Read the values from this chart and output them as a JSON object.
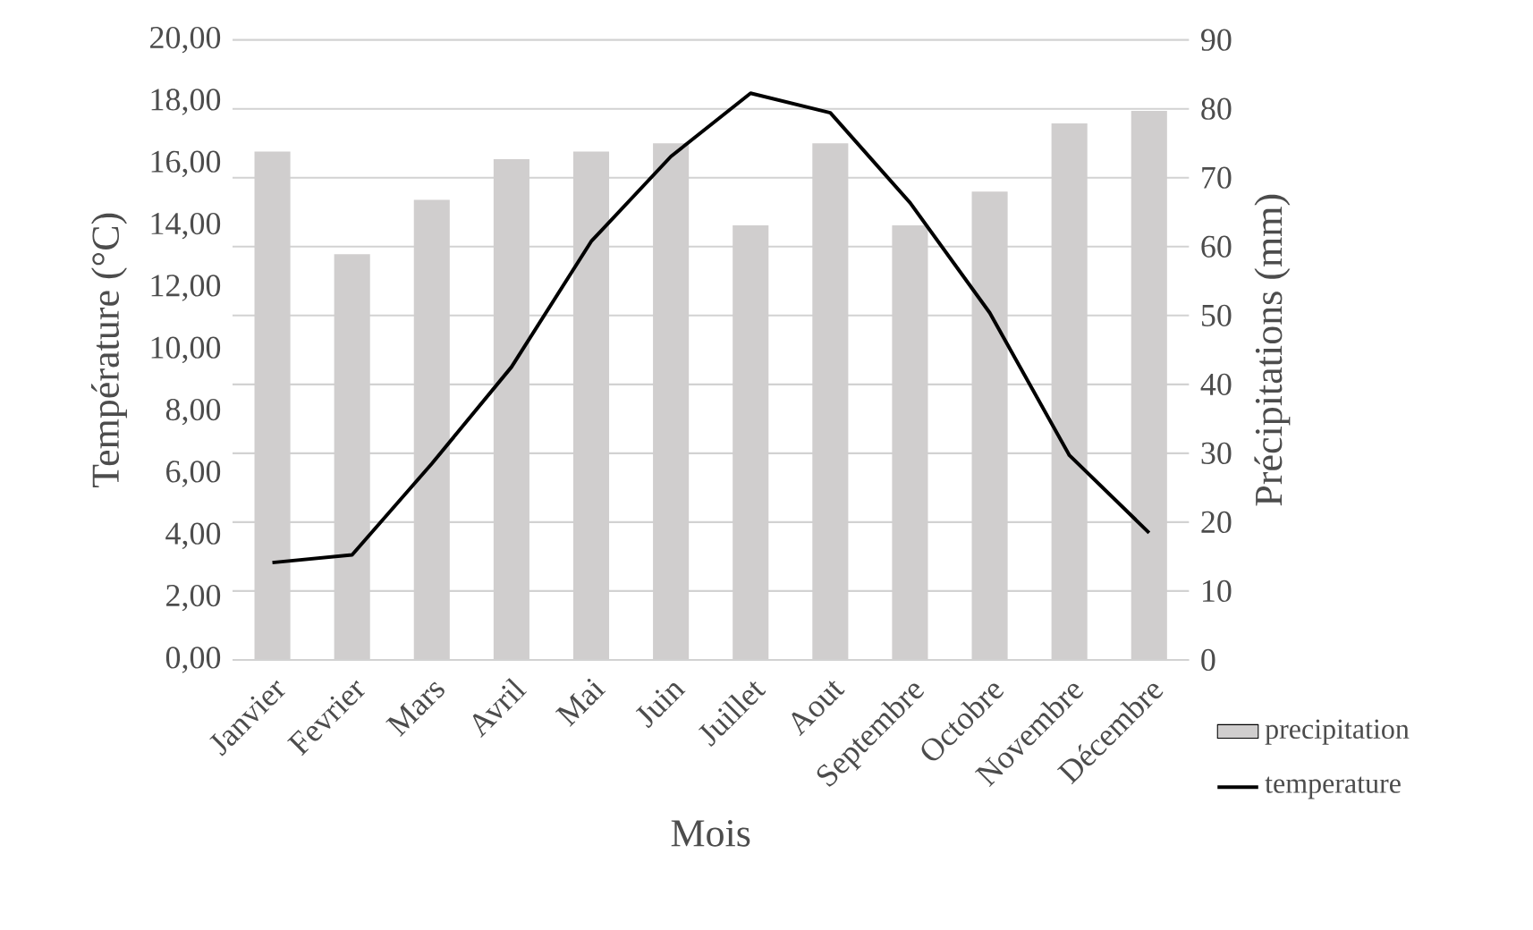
{
  "chart_data": {
    "type": "bar",
    "xlabel": "Mois",
    "ylabel": "Température (°C)",
    "y2label": "Précipitations (mm)",
    "categories": [
      "Janvier",
      "Fevrier",
      "Mars",
      "Avril",
      "Mai",
      "Juin",
      "Juillet",
      "Aout",
      "Septembre",
      "Octobre",
      "Novembre",
      "Décembre"
    ],
    "series": [
      {
        "name": "precipitation",
        "axis": "y2",
        "color": "#d0cece",
        "values": [
          73.8,
          58.9,
          66.8,
          72.7,
          73.8,
          75.0,
          63.1,
          75.0,
          63.1,
          68.0,
          77.9,
          79.7
        ]
      },
      {
        "name": "temperature",
        "type": "line",
        "axis": "y",
        "color": "#000000",
        "values": [
          3.14,
          3.39,
          6.33,
          9.45,
          13.5,
          16.24,
          18.28,
          17.65,
          14.75,
          11.2,
          6.6,
          4.1
        ]
      }
    ],
    "ylim": [
      0,
      20
    ],
    "yticks": [
      {
        "value": 0,
        "label": "0,00"
      },
      {
        "value": 2,
        "label": "2,00"
      },
      {
        "value": 4,
        "label": "4,00"
      },
      {
        "value": 6,
        "label": "6,00"
      },
      {
        "value": 8,
        "label": "8,00"
      },
      {
        "value": 10,
        "label": "10,00"
      },
      {
        "value": 12,
        "label": "12,00"
      },
      {
        "value": 14,
        "label": "14,00"
      },
      {
        "value": 16,
        "label": "16,00"
      },
      {
        "value": 18,
        "label": "18,00"
      },
      {
        "value": 20,
        "label": "20,00"
      }
    ],
    "y2lim": [
      0,
      90
    ],
    "y2ticks": [
      0,
      10,
      20,
      30,
      40,
      50,
      60,
      70,
      80,
      90
    ],
    "grid": "y",
    "legend": "bottom right"
  }
}
